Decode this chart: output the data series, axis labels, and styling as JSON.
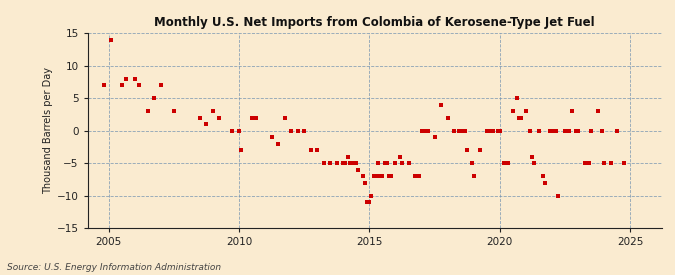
{
  "title": "Monthly U.S. Net Imports from Colombia of Kerosene-Type Jet Fuel",
  "ylabel": "Thousand Barrels per Day",
  "source": "Source: U.S. Energy Information Administration",
  "background_color": "#faebd0",
  "plot_bg_color": "#faebd0",
  "dot_color": "#cc0000",
  "xlim": [
    2004.2,
    2026.2
  ],
  "ylim": [
    -15,
    15
  ],
  "yticks": [
    -15,
    -10,
    -5,
    0,
    5,
    10,
    15
  ],
  "xticks": [
    2005,
    2010,
    2015,
    2020,
    2025
  ],
  "data_points": [
    [
      2004.83,
      7
    ],
    [
      2005.08,
      14
    ],
    [
      2005.5,
      7
    ],
    [
      2005.67,
      8
    ],
    [
      2006.0,
      8
    ],
    [
      2006.17,
      7
    ],
    [
      2006.5,
      3
    ],
    [
      2006.75,
      5
    ],
    [
      2007.0,
      7
    ],
    [
      2007.5,
      3
    ],
    [
      2008.5,
      2
    ],
    [
      2008.75,
      1
    ],
    [
      2009.0,
      3
    ],
    [
      2009.25,
      2
    ],
    [
      2009.75,
      0
    ],
    [
      2010.0,
      0
    ],
    [
      2010.08,
      -3
    ],
    [
      2010.5,
      2
    ],
    [
      2010.67,
      2
    ],
    [
      2011.25,
      -1
    ],
    [
      2011.5,
      -2
    ],
    [
      2011.75,
      2
    ],
    [
      2012.0,
      0
    ],
    [
      2012.25,
      0
    ],
    [
      2012.5,
      0
    ],
    [
      2012.75,
      -3
    ],
    [
      2013.0,
      -3
    ],
    [
      2013.25,
      -5
    ],
    [
      2013.5,
      -5
    ],
    [
      2013.75,
      -5
    ],
    [
      2014.0,
      -5
    ],
    [
      2014.08,
      -5
    ],
    [
      2014.17,
      -4
    ],
    [
      2014.25,
      -5
    ],
    [
      2014.33,
      -5
    ],
    [
      2014.5,
      -5
    ],
    [
      2014.58,
      -6
    ],
    [
      2014.75,
      -7
    ],
    [
      2014.83,
      -8
    ],
    [
      2014.92,
      -11
    ],
    [
      2015.0,
      -11
    ],
    [
      2015.08,
      -10
    ],
    [
      2015.17,
      -7
    ],
    [
      2015.25,
      -7
    ],
    [
      2015.33,
      -5
    ],
    [
      2015.42,
      -7
    ],
    [
      2015.5,
      -7
    ],
    [
      2015.58,
      -5
    ],
    [
      2015.67,
      -5
    ],
    [
      2015.75,
      -7
    ],
    [
      2015.83,
      -7
    ],
    [
      2016.0,
      -5
    ],
    [
      2016.17,
      -4
    ],
    [
      2016.25,
      -5
    ],
    [
      2016.5,
      -5
    ],
    [
      2016.75,
      -7
    ],
    [
      2016.92,
      -7
    ],
    [
      2017.0,
      0
    ],
    [
      2017.17,
      0
    ],
    [
      2017.25,
      0
    ],
    [
      2017.5,
      -1
    ],
    [
      2017.75,
      4
    ],
    [
      2018.0,
      2
    ],
    [
      2018.25,
      0
    ],
    [
      2018.42,
      0
    ],
    [
      2018.5,
      0
    ],
    [
      2018.67,
      0
    ],
    [
      2018.75,
      -3
    ],
    [
      2018.92,
      -5
    ],
    [
      2019.0,
      -7
    ],
    [
      2019.25,
      -3
    ],
    [
      2019.5,
      0
    ],
    [
      2019.67,
      0
    ],
    [
      2019.75,
      0
    ],
    [
      2019.92,
      0
    ],
    [
      2020.0,
      0
    ],
    [
      2020.17,
      -5
    ],
    [
      2020.33,
      -5
    ],
    [
      2020.5,
      3
    ],
    [
      2020.67,
      5
    ],
    [
      2020.75,
      2
    ],
    [
      2020.83,
      2
    ],
    [
      2021.0,
      3
    ],
    [
      2021.17,
      0
    ],
    [
      2021.25,
      -4
    ],
    [
      2021.33,
      -5
    ],
    [
      2021.5,
      0
    ],
    [
      2021.67,
      -7
    ],
    [
      2021.75,
      -8
    ],
    [
      2021.92,
      0
    ],
    [
      2022.0,
      0
    ],
    [
      2022.17,
      0
    ],
    [
      2022.25,
      -10
    ],
    [
      2022.5,
      0
    ],
    [
      2022.67,
      0
    ],
    [
      2022.75,
      3
    ],
    [
      2022.92,
      0
    ],
    [
      2023.0,
      0
    ],
    [
      2023.25,
      -5
    ],
    [
      2023.42,
      -5
    ],
    [
      2023.5,
      0
    ],
    [
      2023.75,
      3
    ],
    [
      2023.92,
      0
    ],
    [
      2024.0,
      -5
    ],
    [
      2024.25,
      -5
    ],
    [
      2024.5,
      0
    ],
    [
      2024.75,
      -5
    ]
  ]
}
